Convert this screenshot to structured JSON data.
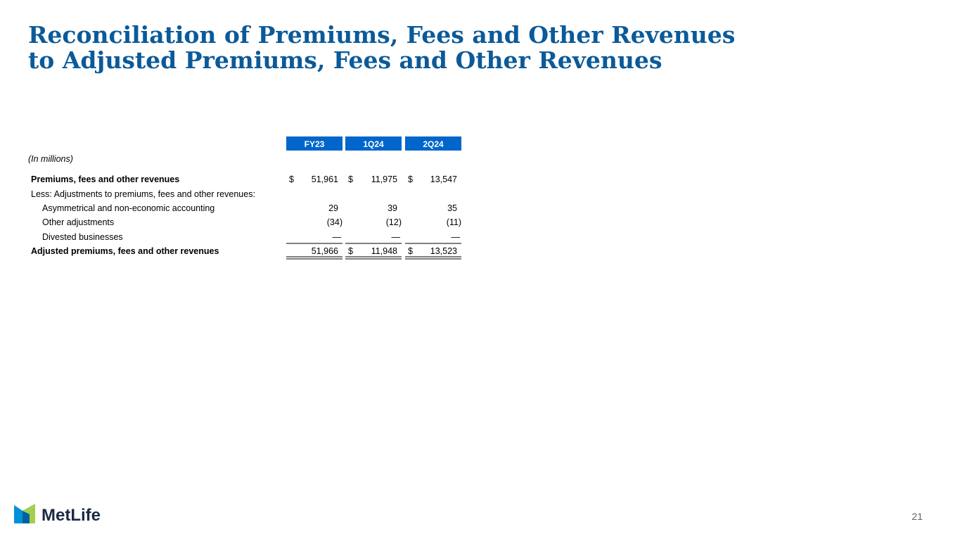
{
  "header": {
    "title_lines": [
      "Reconciliation of Premiums, Fees and Other Revenues",
      "to Adjusted Premiums, Fees and Other Revenues"
    ]
  },
  "table": {
    "columns": [
      "FY23",
      "1Q24",
      "2Q24"
    ],
    "unit_note": "(In millions)",
    "rows": [
      {
        "label": "Premiums, fees and other revenues",
        "bold": true,
        "indent": false,
        "cells": [
          {
            "currency": "$",
            "value": "51,961"
          },
          {
            "currency": "$",
            "value": "11,975"
          },
          {
            "currency": "$",
            "value": "13,547"
          }
        ]
      },
      {
        "label": "Less: Adjustments to premiums, fees and other revenues:",
        "bold": false,
        "indent": false,
        "cells": []
      },
      {
        "label": "Asymmetrical and non-economic accounting",
        "bold": false,
        "indent": true,
        "cells": [
          {
            "value": "29"
          },
          {
            "value": "39"
          },
          {
            "value": "35"
          }
        ]
      },
      {
        "label": "Other adjustments",
        "bold": false,
        "indent": true,
        "cells": [
          {
            "value": "(34)"
          },
          {
            "value": "(12)"
          },
          {
            "value": "(11)"
          }
        ]
      },
      {
        "label": "Divested businesses",
        "bold": false,
        "indent": true,
        "underline": true,
        "cells": [
          {
            "value": "—"
          },
          {
            "value": "—"
          },
          {
            "value": "—"
          }
        ]
      },
      {
        "label": "Adjusted premiums, fees and other revenues",
        "bold": true,
        "indent": false,
        "double_underline": true,
        "cells": [
          {
            "value": "51,966"
          },
          {
            "currency": "$",
            "value": "11,948"
          },
          {
            "currency": "$",
            "value": "13,523"
          }
        ]
      }
    ]
  },
  "footer": {
    "logo": "MetLife",
    "page_number": "21"
  }
}
